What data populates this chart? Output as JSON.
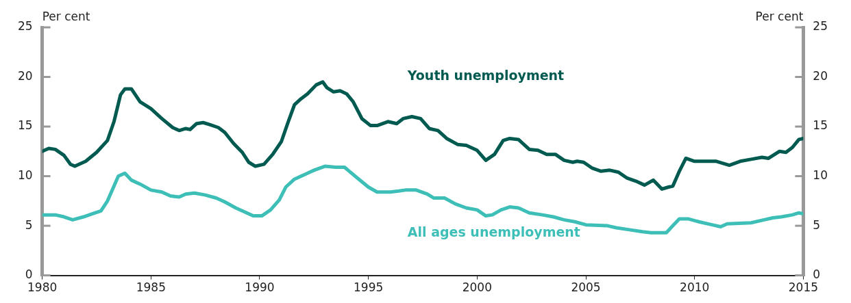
{
  "chart_data": {
    "type": "line",
    "ylabel": "Per cent",
    "y2label": "Per cent",
    "xlim": [
      1980,
      2015
    ],
    "xticks": [
      1980,
      1985,
      1990,
      1995,
      2000,
      2005,
      2010,
      2015
    ],
    "ylim": [
      0,
      25
    ],
    "yticks": [
      0,
      5,
      10,
      15,
      20,
      25
    ],
    "y2lim": [
      0,
      25
    ],
    "y2ticks": [
      0,
      5,
      10,
      15,
      20,
      25
    ],
    "grid": false,
    "legend": false,
    "marker": "none",
    "line_style": "solid",
    "series": [
      {
        "name": "Youth unemployment",
        "color": "#005a50",
        "x": [
          1980.0,
          1980.3,
          1980.6,
          1981.0,
          1981.3,
          1981.5,
          1982.0,
          1982.5,
          1983.0,
          1983.3,
          1983.6,
          1983.8,
          1984.1,
          1984.5,
          1985.0,
          1985.5,
          1986.0,
          1986.3,
          1986.6,
          1986.8,
          1987.1,
          1987.4,
          1987.7,
          1988.1,
          1988.4,
          1988.8,
          1989.2,
          1989.5,
          1989.8,
          1990.2,
          1990.6,
          1991.0,
          1991.3,
          1991.6,
          1991.9,
          1992.2,
          1992.6,
          1992.9,
          1993.1,
          1993.4,
          1993.7,
          1994.0,
          1994.3,
          1994.7,
          1995.1,
          1995.4,
          1995.9,
          1996.3,
          1996.6,
          1997.0,
          1997.4,
          1997.8,
          1998.2,
          1998.6,
          1999.1,
          1999.5,
          2000.0,
          2000.4,
          2000.8,
          2001.2,
          2001.5,
          2001.9,
          2002.4,
          2002.8,
          2003.2,
          2003.6,
          2004.0,
          2004.4,
          2004.6,
          2004.9,
          2005.3,
          2005.7,
          2006.1,
          2006.5,
          2006.9,
          2007.3,
          2007.7,
          2008.1,
          2008.5,
          2008.8,
          2009.0,
          2009.3,
          2009.6,
          2010.0,
          2010.3,
          2011.0,
          2011.6,
          2012.1,
          2012.6,
          2013.1,
          2013.4,
          2013.9,
          2014.2,
          2014.5,
          2014.8,
          2015.0
        ],
        "values": [
          12.5,
          12.8,
          12.7,
          12.1,
          11.2,
          11.0,
          11.5,
          12.4,
          13.6,
          15.5,
          18.2,
          18.8,
          18.8,
          17.5,
          16.8,
          15.8,
          14.9,
          14.6,
          14.8,
          14.7,
          15.3,
          15.4,
          15.2,
          14.9,
          14.4,
          13.3,
          12.4,
          11.4,
          11.0,
          11.2,
          12.2,
          13.5,
          15.4,
          17.2,
          17.8,
          18.3,
          19.2,
          19.5,
          18.9,
          18.5,
          18.6,
          18.3,
          17.5,
          15.8,
          15.1,
          15.1,
          15.5,
          15.3,
          15.8,
          16.0,
          15.8,
          14.8,
          14.6,
          13.8,
          13.2,
          13.1,
          12.6,
          11.6,
          12.2,
          13.6,
          13.8,
          13.7,
          12.7,
          12.6,
          12.2,
          12.2,
          11.6,
          11.4,
          11.5,
          11.4,
          10.8,
          10.5,
          10.6,
          10.4,
          9.8,
          9.5,
          9.1,
          9.6,
          8.7,
          8.9,
          9.0,
          10.5,
          11.8,
          11.5,
          11.5,
          11.5,
          11.1,
          11.5,
          11.7,
          11.9,
          11.8,
          12.5,
          12.4,
          12.9,
          13.7,
          13.8
        ]
      },
      {
        "name": "All ages unemployment",
        "color": "#3dbfb8",
        "x": [
          1980.0,
          1980.6,
          1981.0,
          1981.4,
          1981.9,
          1982.3,
          1982.7,
          1983.0,
          1983.3,
          1983.5,
          1983.8,
          1984.1,
          1984.5,
          1985.0,
          1985.5,
          1985.9,
          1986.3,
          1986.6,
          1987.0,
          1987.5,
          1988.0,
          1988.4,
          1988.9,
          1989.3,
          1989.7,
          1990.1,
          1990.5,
          1990.9,
          1991.2,
          1991.6,
          1992.1,
          1992.5,
          1993.0,
          1993.5,
          1993.9,
          1994.5,
          1995.0,
          1995.4,
          1996.0,
          1996.4,
          1996.7,
          1997.2,
          1997.7,
          1998.0,
          1998.5,
          1999.0,
          1999.5,
          2000.0,
          2000.4,
          2000.7,
          2001.1,
          2001.5,
          2001.9,
          2002.4,
          2003.0,
          2003.5,
          2004.0,
          2004.5,
          2005.0,
          2006.0,
          2006.4,
          2007.0,
          2007.6,
          2008.0,
          2008.7,
          2009.0,
          2009.3,
          2009.7,
          2010.2,
          2010.8,
          2011.2,
          2011.5,
          2012.6,
          2013.2,
          2013.6,
          2014.0,
          2014.5,
          2014.8,
          2015.0
        ],
        "values": [
          6.1,
          6.1,
          5.9,
          5.6,
          5.9,
          6.2,
          6.5,
          7.5,
          9.0,
          10.0,
          10.3,
          9.6,
          9.2,
          8.6,
          8.4,
          8.0,
          7.9,
          8.2,
          8.3,
          8.1,
          7.8,
          7.4,
          6.8,
          6.4,
          6.0,
          6.0,
          6.6,
          7.6,
          8.9,
          9.7,
          10.2,
          10.6,
          11.0,
          10.9,
          10.9,
          9.8,
          8.9,
          8.4,
          8.4,
          8.5,
          8.6,
          8.6,
          8.2,
          7.8,
          7.8,
          7.2,
          6.8,
          6.6,
          6.0,
          6.1,
          6.6,
          6.9,
          6.8,
          6.3,
          6.1,
          5.9,
          5.6,
          5.4,
          5.1,
          5.0,
          4.8,
          4.6,
          4.4,
          4.3,
          4.3,
          5.0,
          5.7,
          5.7,
          5.4,
          5.1,
          4.9,
          5.2,
          5.3,
          5.6,
          5.8,
          5.9,
          6.1,
          6.3,
          6.2
        ]
      }
    ]
  }
}
